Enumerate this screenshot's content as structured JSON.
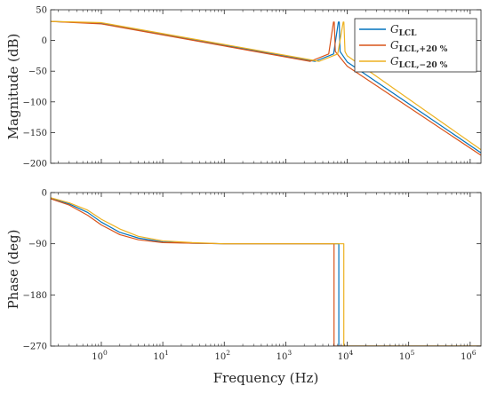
{
  "chart_data": {
    "type": "line",
    "title": "",
    "xlabel": "Frequency (Hz)",
    "x_scale": "log",
    "x_range": [
      0.15,
      1500000
    ],
    "x_tick_labels": [
      {
        "value": 1,
        "base": "10",
        "exp": "0"
      },
      {
        "value": 10,
        "base": "10",
        "exp": "1"
      },
      {
        "value": 100,
        "base": "10",
        "exp": "2"
      },
      {
        "value": 1000,
        "base": "10",
        "exp": "3"
      },
      {
        "value": 10000,
        "base": "10",
        "exp": "4"
      },
      {
        "value": 100000,
        "base": "10",
        "exp": "5"
      },
      {
        "value": 1000000,
        "base": "10",
        "exp": "6"
      }
    ],
    "legend_position": "top-right",
    "colors": {
      "series_nominal": "#0072BD",
      "series_plus20": "#D95319",
      "series_minus20": "#EDB120"
    },
    "legend": [
      {
        "main": "G",
        "sub": "LCL",
        "color": "#0072BD"
      },
      {
        "main": "G",
        "sub": "LCL,+20 %",
        "color": "#D95319"
      },
      {
        "main": "G",
        "sub": "LCL,−20 %",
        "color": "#EDB120"
      }
    ],
    "subplots": [
      {
        "name": "magnitude",
        "ylabel": "Magnitude (dB)",
        "ylim": [
          -200,
          50
        ],
        "y_ticks": [
          50,
          0,
          -50,
          -100,
          -150,
          -200
        ],
        "y_tick_labels": [
          "50",
          "0",
          "−50",
          "−100",
          "−150",
          "−200"
        ],
        "grid": false,
        "series": [
          {
            "legend_index": 0,
            "x": [
              0.15,
              1,
              3000,
              6000,
              7180,
              7420,
              7650,
              10000,
              1500000
            ],
            "y": [
              31,
              28,
              -34,
              -22,
              30,
              30,
              -18,
              -35,
              -183
            ]
          },
          {
            "legend_index": 1,
            "x": [
              0.15,
              1,
              2500,
              5000,
              5980,
              6150,
              6400,
              10000,
              1500000
            ],
            "y": [
              31,
              27,
              -34,
              -22,
              30,
              30,
              -18,
              -42,
              -187
            ]
          },
          {
            "legend_index": 2,
            "x": [
              0.15,
              1,
              3500,
              7000,
              8600,
              8820,
              9200,
              10000,
              1500000
            ],
            "y": [
              31,
              29,
              -34,
              -22,
              30,
              30,
              -18,
              -25,
              -178
            ]
          }
        ]
      },
      {
        "name": "phase",
        "ylabel": "Phase (deg)",
        "ylim": [
          -270,
          0
        ],
        "y_ticks": [
          0,
          -90,
          -180,
          -270
        ],
        "y_tick_labels": [
          "0",
          "−90",
          "−180",
          "−270"
        ],
        "grid": false,
        "series": [
          {
            "legend_index": 0,
            "x": [
              0.15,
              0.3,
              0.6,
              1,
              2,
              4,
              10,
              30,
              100,
              7300,
              7300,
              1500000
            ],
            "y": [
              -10,
              -20,
              -35,
              -52,
              -70,
              -80,
              -87,
              -89,
              -90,
              -90,
              -270,
              -270
            ]
          },
          {
            "legend_index": 1,
            "x": [
              0.15,
              0.3,
              0.6,
              1,
              2,
              4,
              10,
              30,
              100,
              6100,
              6100,
              1500000
            ],
            "y": [
              -11,
              -22,
              -40,
              -57,
              -74,
              -83,
              -88,
              -89,
              -90,
              -90,
              -270,
              -270
            ]
          },
          {
            "legend_index": 2,
            "x": [
              0.15,
              0.3,
              0.6,
              1,
              2,
              4,
              10,
              30,
              100,
              8800,
              8800,
              1500000
            ],
            "y": [
              -9,
              -18,
              -31,
              -47,
              -64,
              -77,
              -85,
              -88,
              -90,
              -90,
              -270,
              -270
            ]
          }
        ]
      }
    ]
  }
}
